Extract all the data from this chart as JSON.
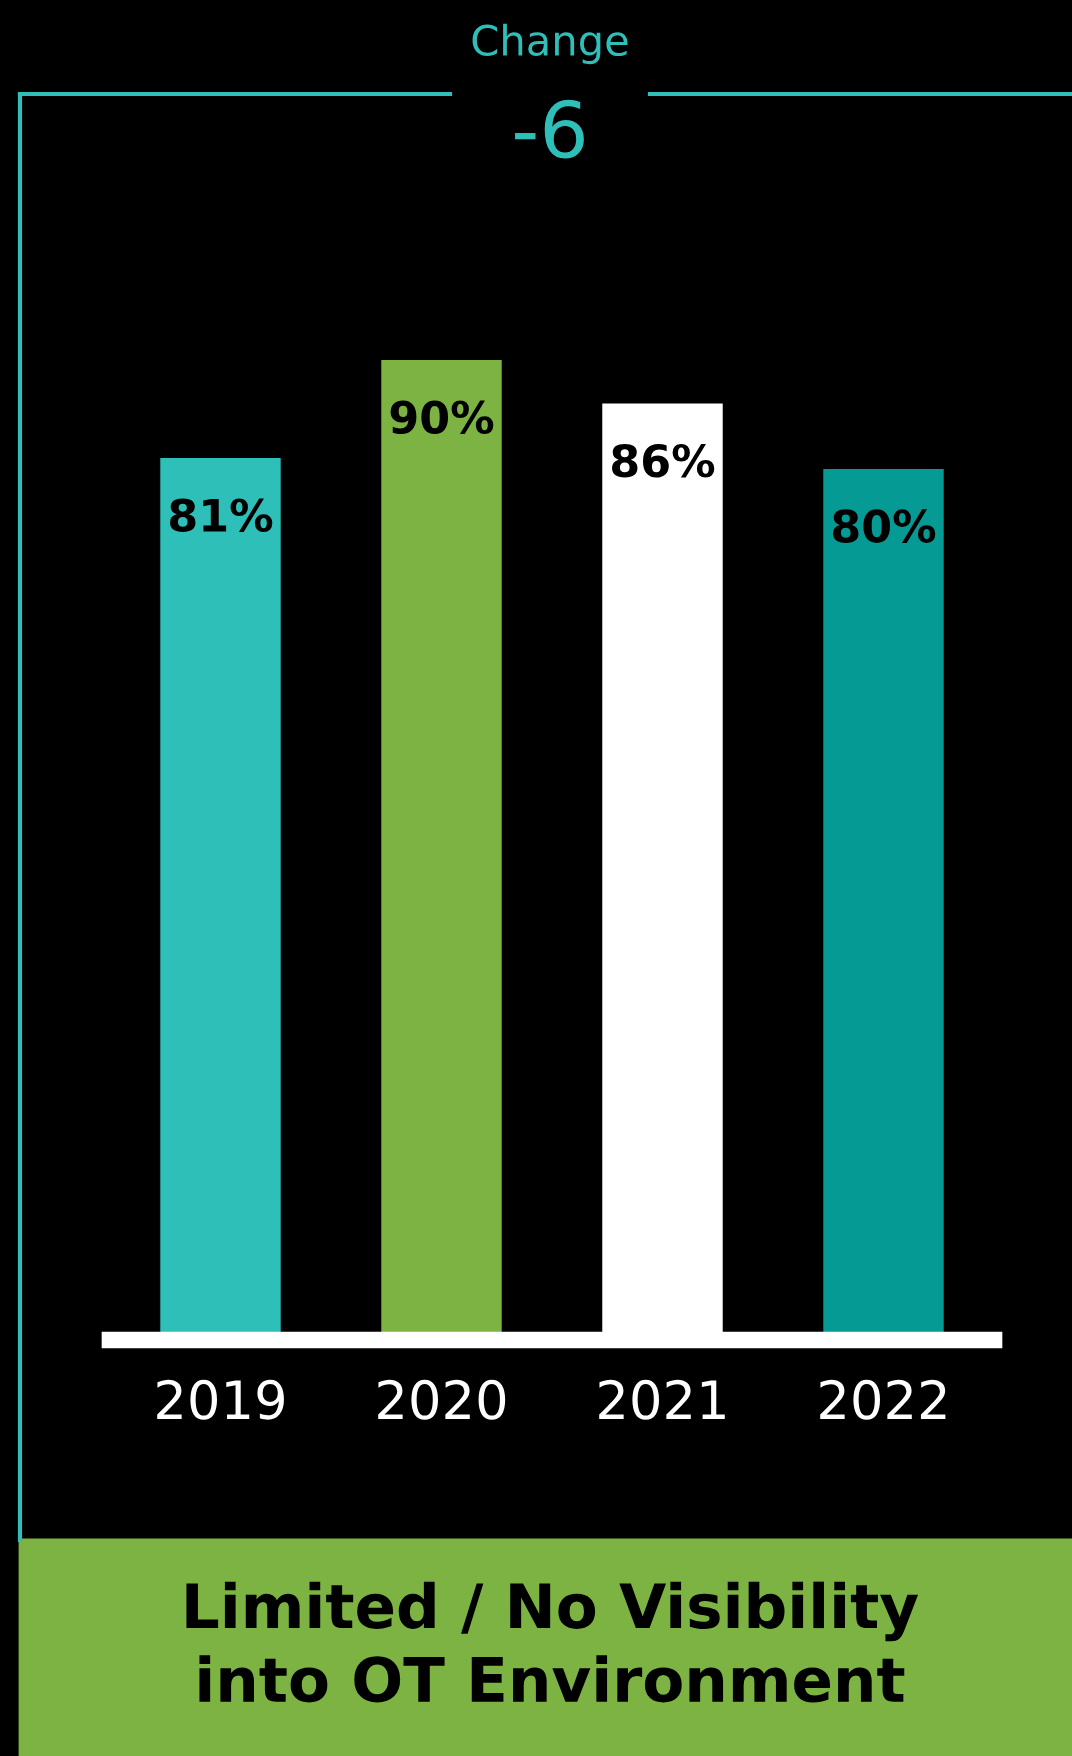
{
  "chart_data": {
    "type": "bar",
    "title": "Limited / No Visibility\ninto OT Environment",
    "annotations": [
      "Change",
      "-6"
    ],
    "categories": [
      "2019",
      "2020",
      "2021",
      "2022"
    ],
    "values": [
      81,
      90,
      86,
      80
    ],
    "colors": [
      "#2ebfb8",
      "#7cb342",
      "#ffffff",
      "#069a94"
    ],
    "value_labels": [
      "81%",
      "90%",
      "86%",
      "80%"
    ]
  }
}
